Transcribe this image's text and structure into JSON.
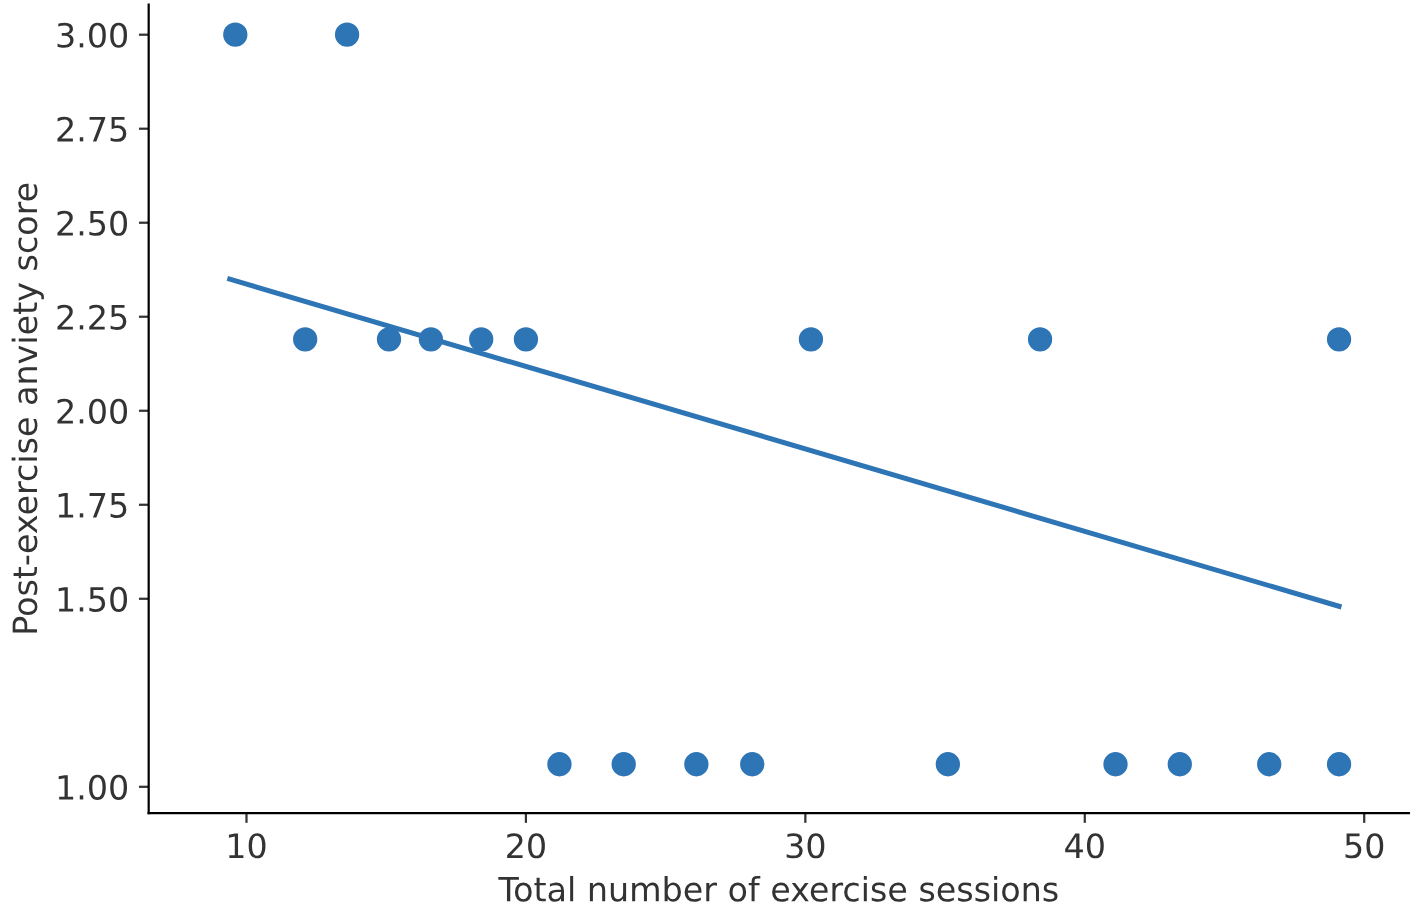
{
  "chart_data": {
    "type": "scatter",
    "xlabel": "Total number of exercise sessions",
    "ylabel": "Post-exercise anviety score",
    "xlim": [
      6.5,
      51.6
    ],
    "xticks": [
      10,
      20,
      30,
      40,
      50
    ],
    "ylim": [
      0.93,
      3.08
    ],
    "yticks": [
      {
        "value": 3.0,
        "label": "3.00"
      },
      {
        "value": 2.75,
        "label": "2.75"
      },
      {
        "value": 2.5,
        "label": "2.50"
      },
      {
        "value": 2.25,
        "label": "2.25"
      },
      {
        "value": 2.0,
        "label": "2.00"
      },
      {
        "value": 1.75,
        "label": "1.75"
      },
      {
        "value": 1.5,
        "label": "1.50"
      },
      {
        "value": 1.0,
        "label": "1.00"
      }
    ],
    "grid": false,
    "series": [
      {
        "type": "scatter",
        "color": "#2e75b6",
        "marker": "circle",
        "x": [
          9.6,
          13.6,
          12.1,
          15.1,
          16.6,
          18.4,
          20.0,
          30.2,
          38.4,
          49.1,
          21.2,
          23.5,
          26.1,
          28.1,
          35.1,
          41.1,
          43.4,
          46.6,
          49.1
        ],
        "values": [
          3.0,
          3.0,
          2.19,
          2.19,
          2.19,
          2.19,
          2.19,
          2.19,
          2.19,
          2.19,
          1.06,
          1.06,
          1.06,
          1.06,
          1.06,
          1.06,
          1.06,
          1.06,
          1.06
        ]
      },
      {
        "type": "line",
        "color": "#2e75b6",
        "marker": "none",
        "line_style": "solid",
        "x": [
          9.4,
          49.1
        ],
        "values": [
          2.35,
          1.48
        ]
      }
    ]
  }
}
